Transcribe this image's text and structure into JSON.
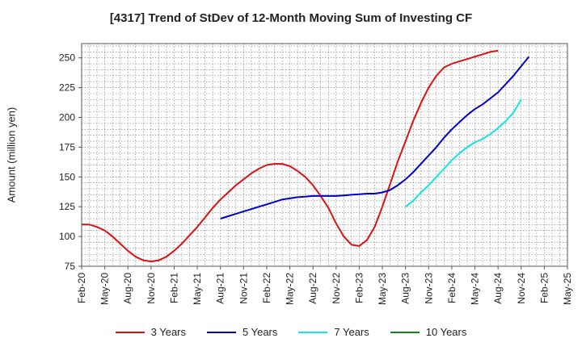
{
  "chart_data": {
    "type": "line",
    "title": "[4317]  Trend of StDev of 12-Month Moving Sum of Investing CF",
    "ylabel": "Amount (million yen)",
    "xlabel": "",
    "ylim": [
      75,
      262
    ],
    "y_ticks": [
      75,
      100,
      125,
      150,
      175,
      200,
      225,
      250
    ],
    "x_tick_labels": [
      "Feb-20",
      "May-20",
      "Aug-20",
      "Nov-20",
      "Feb-21",
      "May-21",
      "Aug-21",
      "Nov-21",
      "Feb-22",
      "May-22",
      "Aug-22",
      "Nov-22",
      "Feb-23",
      "May-23",
      "Aug-23",
      "Nov-23",
      "Feb-24",
      "May-24",
      "Aug-24",
      "Nov-24",
      "Feb-25",
      "May-25"
    ],
    "grid": true,
    "legend_position": "bottom",
    "series": [
      {
        "name": "3 Years",
        "color": "#dd1111",
        "start": "Feb-20",
        "values": [
          110,
          110,
          108,
          105,
          100,
          94,
          88,
          83,
          80,
          79,
          80,
          83,
          88,
          94,
          101,
          108,
          116,
          124,
          131,
          137,
          143,
          148,
          153,
          157,
          160,
          161,
          161,
          159,
          155,
          150,
          143,
          134,
          124,
          111,
          100,
          93,
          92,
          97,
          108,
          125,
          144,
          163,
          180,
          197,
          212,
          225,
          235,
          242,
          245,
          247,
          249,
          251,
          253,
          255,
          256
        ]
      },
      {
        "name": "5 Years",
        "color": "#0000cc",
        "start": "Aug-21",
        "values": [
          115,
          117,
          119,
          121,
          123,
          125,
          127,
          129,
          131,
          132,
          133,
          133.5,
          134,
          134,
          134,
          134,
          134.5,
          135,
          135.5,
          136,
          136,
          137,
          139,
          143,
          148,
          154,
          161,
          168,
          175,
          183,
          190,
          196,
          202,
          207,
          211,
          216,
          221,
          228,
          235,
          243,
          251
        ]
      },
      {
        "name": "7 Years",
        "color": "#11e5e5",
        "start": "Aug-23",
        "values": [
          125,
          130,
          137,
          143,
          150,
          157,
          164,
          170,
          175,
          179,
          182,
          186,
          191,
          197,
          204,
          215
        ]
      },
      {
        "name": "10 Years",
        "color": "#118811",
        "start": "",
        "values": []
      }
    ]
  }
}
